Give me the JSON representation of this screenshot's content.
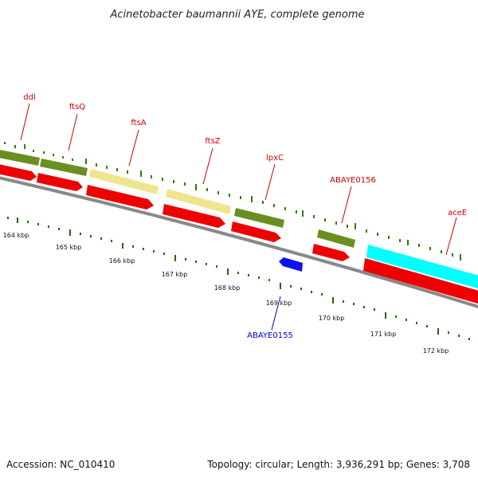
{
  "title": "Acinetobacter baumannii AYE, complete genome",
  "footer": {
    "accession": "Accession: NC_010410",
    "summary": "Topology: circular; Length: 3,936,291 bp; Genes: 3,708"
  },
  "colors": {
    "backbone": "#888888",
    "cds": "#ee0000",
    "cds_reverse": "#1010ee",
    "olive": "#6b8e23",
    "khaki": "#eee68c",
    "cyan": "#00ffff",
    "forward_label": "#cc0000",
    "reverse_label": "#0000cc",
    "tick_forward": "#2e7d00",
    "tick_scale": "#1d6b00"
  },
  "scale_labels": [
    "164 kbp",
    "165 kbp",
    "166 kbp",
    "167 kbp",
    "168 kbp",
    "169 kbp",
    "170 kbp",
    "171 kbp",
    "172 kbp"
  ],
  "genes_forward": [
    {
      "name": "ddl",
      "feature_color": "olive"
    },
    {
      "name": "ftsQ",
      "feature_color": "olive"
    },
    {
      "name": "ftsA",
      "feature_color": "khaki"
    },
    {
      "name": "ftsZ",
      "feature_color": "khaki"
    },
    {
      "name": "lpxC",
      "feature_color": "olive"
    },
    {
      "name": "ABAYE0156",
      "feature_color": "olive"
    },
    {
      "name": "aceE",
      "feature_color": "cyan"
    }
  ],
  "genes_reverse": [
    {
      "name": "ABAYE0155"
    }
  ]
}
